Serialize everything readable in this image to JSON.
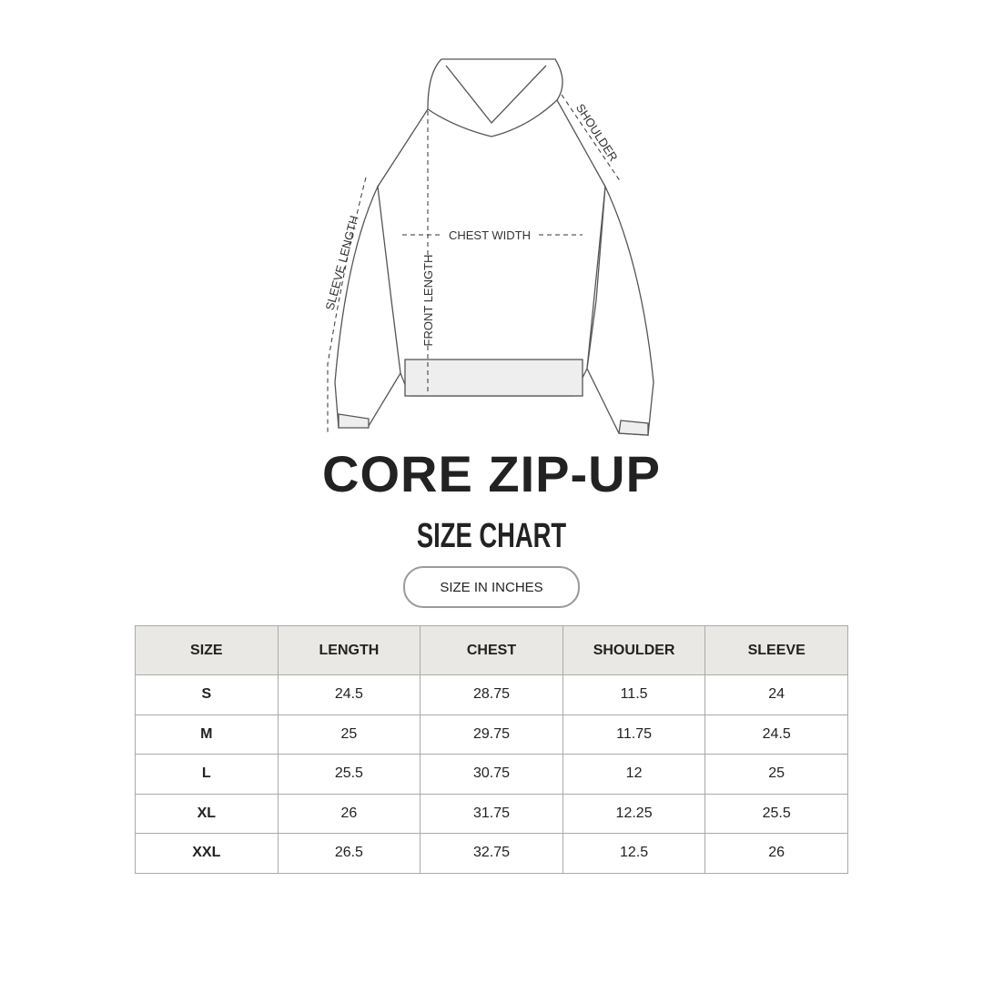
{
  "diagram": {
    "labels": {
      "shoulder": "SHOULDER",
      "chest_width": "CHEST WIDTH",
      "front_length": "FRONT LENGTH",
      "sleeve_length": "SLEEVE LENGTH"
    }
  },
  "title": "CORE ZIP-UP",
  "subtitle": "SIZE CHART",
  "unit_badge": "SIZE IN INCHES",
  "table": {
    "headers": [
      "SIZE",
      "LENGTH",
      "CHEST",
      "SHOULDER",
      "SLEEVE"
    ],
    "rows": [
      [
        "S",
        "24.5",
        "28.75",
        "11.5",
        "24"
      ],
      [
        "M",
        "25",
        "29.75",
        "11.75",
        "24.5"
      ],
      [
        "L",
        "25.5",
        "30.75",
        "12",
        "25"
      ],
      [
        "XL",
        "26",
        "31.75",
        "12.25",
        "25.5"
      ],
      [
        "XXL",
        "26.5",
        "32.75",
        "12.5",
        "26"
      ]
    ],
    "colors": {
      "header_bg": "#e9e8e5",
      "border": "#aaaaaa"
    }
  }
}
